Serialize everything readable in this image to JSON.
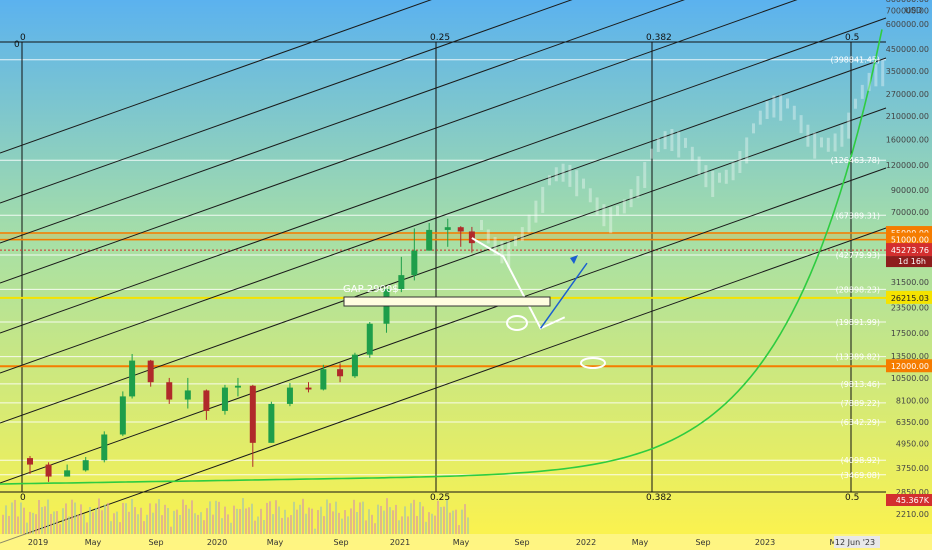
{
  "chart_data": {
    "type": "line",
    "title": "",
    "y_scale": "log",
    "currency_label": "USD",
    "x_ticks": [
      "2019",
      "May",
      "Sep",
      "2020",
      "May",
      "Sep",
      "2021",
      "May",
      "Sep",
      "2022",
      "May",
      "Sep",
      "2023",
      "M",
      "12 Jun '23"
    ],
    "y_ticks": [
      "800000.00",
      "700000.00",
      "600000.00",
      "450000.00",
      "350000.00",
      "270000.00",
      "210000.00",
      "160000.00",
      "120000.00",
      "90000.00",
      "70000.00",
      "55000.00",
      "41500.00",
      "31500.00",
      "23500.00",
      "17500.00",
      "13500.00",
      "10500.00",
      "8100.00",
      "6350.00",
      "4950.00",
      "3750.00",
      "2850.00",
      "2210.00"
    ],
    "fib_labels_top": [
      "0",
      "0",
      "0.25",
      "0.382",
      "0.5"
    ],
    "fib_labels_bottom": [
      "0",
      "0.25",
      "0.382",
      "0.5"
    ],
    "level_labels": [
      {
        "text": "(398841.45)",
        "value": 398841.45
      },
      {
        "text": "(126463.78)",
        "value": 126463.78
      },
      {
        "text": "(67389.31)",
        "value": 67389.31
      },
      {
        "text": "(42779.93)",
        "value": 42779.93
      },
      {
        "text": "(28898.23)",
        "value": 28898.23
      },
      {
        "text": "(19891.99)",
        "value": 19891.99
      },
      {
        "text": "(13389.82)",
        "value": 13389.82
      },
      {
        "text": "(9813.46)",
        "value": 9813.46
      },
      {
        "text": "(7889.22)",
        "value": 7889.22
      },
      {
        "text": "(6342.29)",
        "value": 6342.29
      },
      {
        "text": "(4098.92)",
        "value": 4098.92
      },
      {
        "text": "(3469.08)",
        "value": 3469.08
      }
    ],
    "price_badges": [
      {
        "text": "55000.00",
        "value": 55000,
        "color": "#f57c00"
      },
      {
        "text": "51000.00",
        "value": 51000,
        "color": "#f57c00"
      },
      {
        "text": "45273.76",
        "value": 45273.76,
        "color": "#d32f2f"
      },
      {
        "text": "26215.03",
        "value": 26215.03,
        "color": "#f5e300"
      },
      {
        "text": "12000.00",
        "value": 12000,
        "color": "#f57c00"
      }
    ],
    "countdown": "1d 16h",
    "volume_badge": "45.367K",
    "annotations": [
      "GAP 2900$"
    ],
    "candles": [
      [
        2019.0,
        4200,
        3900,
        4300,
        3500
      ],
      [
        2019.1,
        3900,
        3400,
        4000,
        3200
      ],
      [
        2019.2,
        3400,
        3650,
        3900,
        3400
      ],
      [
        2019.3,
        3650,
        4100,
        4250,
        3600
      ],
      [
        2019.4,
        4100,
        5500,
        5700,
        4000
      ],
      [
        2019.5,
        5500,
        8500,
        9000,
        5400
      ],
      [
        2019.55,
        8500,
        12800,
        13800,
        8300
      ],
      [
        2019.65,
        12800,
        10000,
        12900,
        9500
      ],
      [
        2019.75,
        10000,
        8200,
        10500,
        7800
      ],
      [
        2019.85,
        8200,
        9100,
        10500,
        7400
      ],
      [
        2019.95,
        9100,
        7200,
        9200,
        6500
      ],
      [
        2020.05,
        7200,
        9400,
        9700,
        6900
      ],
      [
        2020.12,
        9400,
        9600,
        10500,
        8500
      ],
      [
        2020.2,
        9600,
        5000,
        9700,
        3800
      ],
      [
        2020.3,
        5000,
        7800,
        8000,
        5000
      ],
      [
        2020.4,
        7800,
        9400,
        9900,
        7600
      ],
      [
        2020.5,
        9400,
        9200,
        10000,
        8900
      ],
      [
        2020.58,
        9200,
        11600,
        12200,
        9100
      ],
      [
        2020.67,
        11600,
        10700,
        12400,
        10000
      ],
      [
        2020.75,
        10700,
        13700,
        14000,
        10500
      ],
      [
        2020.83,
        13700,
        19500,
        19900,
        13200
      ],
      [
        2020.92,
        19500,
        29000,
        29300,
        17600
      ],
      [
        2021.0,
        29000,
        34000,
        41900,
        28000
      ],
      [
        2021.07,
        34000,
        45000,
        58000,
        32000
      ],
      [
        2021.15,
        45000,
        57000,
        61700,
        45000
      ],
      [
        2021.25,
        57000,
        58800,
        64800,
        47000
      ],
      [
        2021.32,
        58800,
        56000,
        59500,
        47000
      ],
      [
        2021.38,
        56000,
        49000,
        59000,
        44000
      ]
    ],
    "path_points": [
      [
        2021.38,
        52000
      ],
      [
        2021.55,
        42000
      ],
      [
        2021.75,
        18500
      ],
      [
        2021.88,
        21000
      ]
    ],
    "arrow": [
      [
        2021.75,
        18500
      ],
      [
        2022.0,
        39000
      ]
    ]
  },
  "ui": {
    "volume_label": "Vol"
  }
}
